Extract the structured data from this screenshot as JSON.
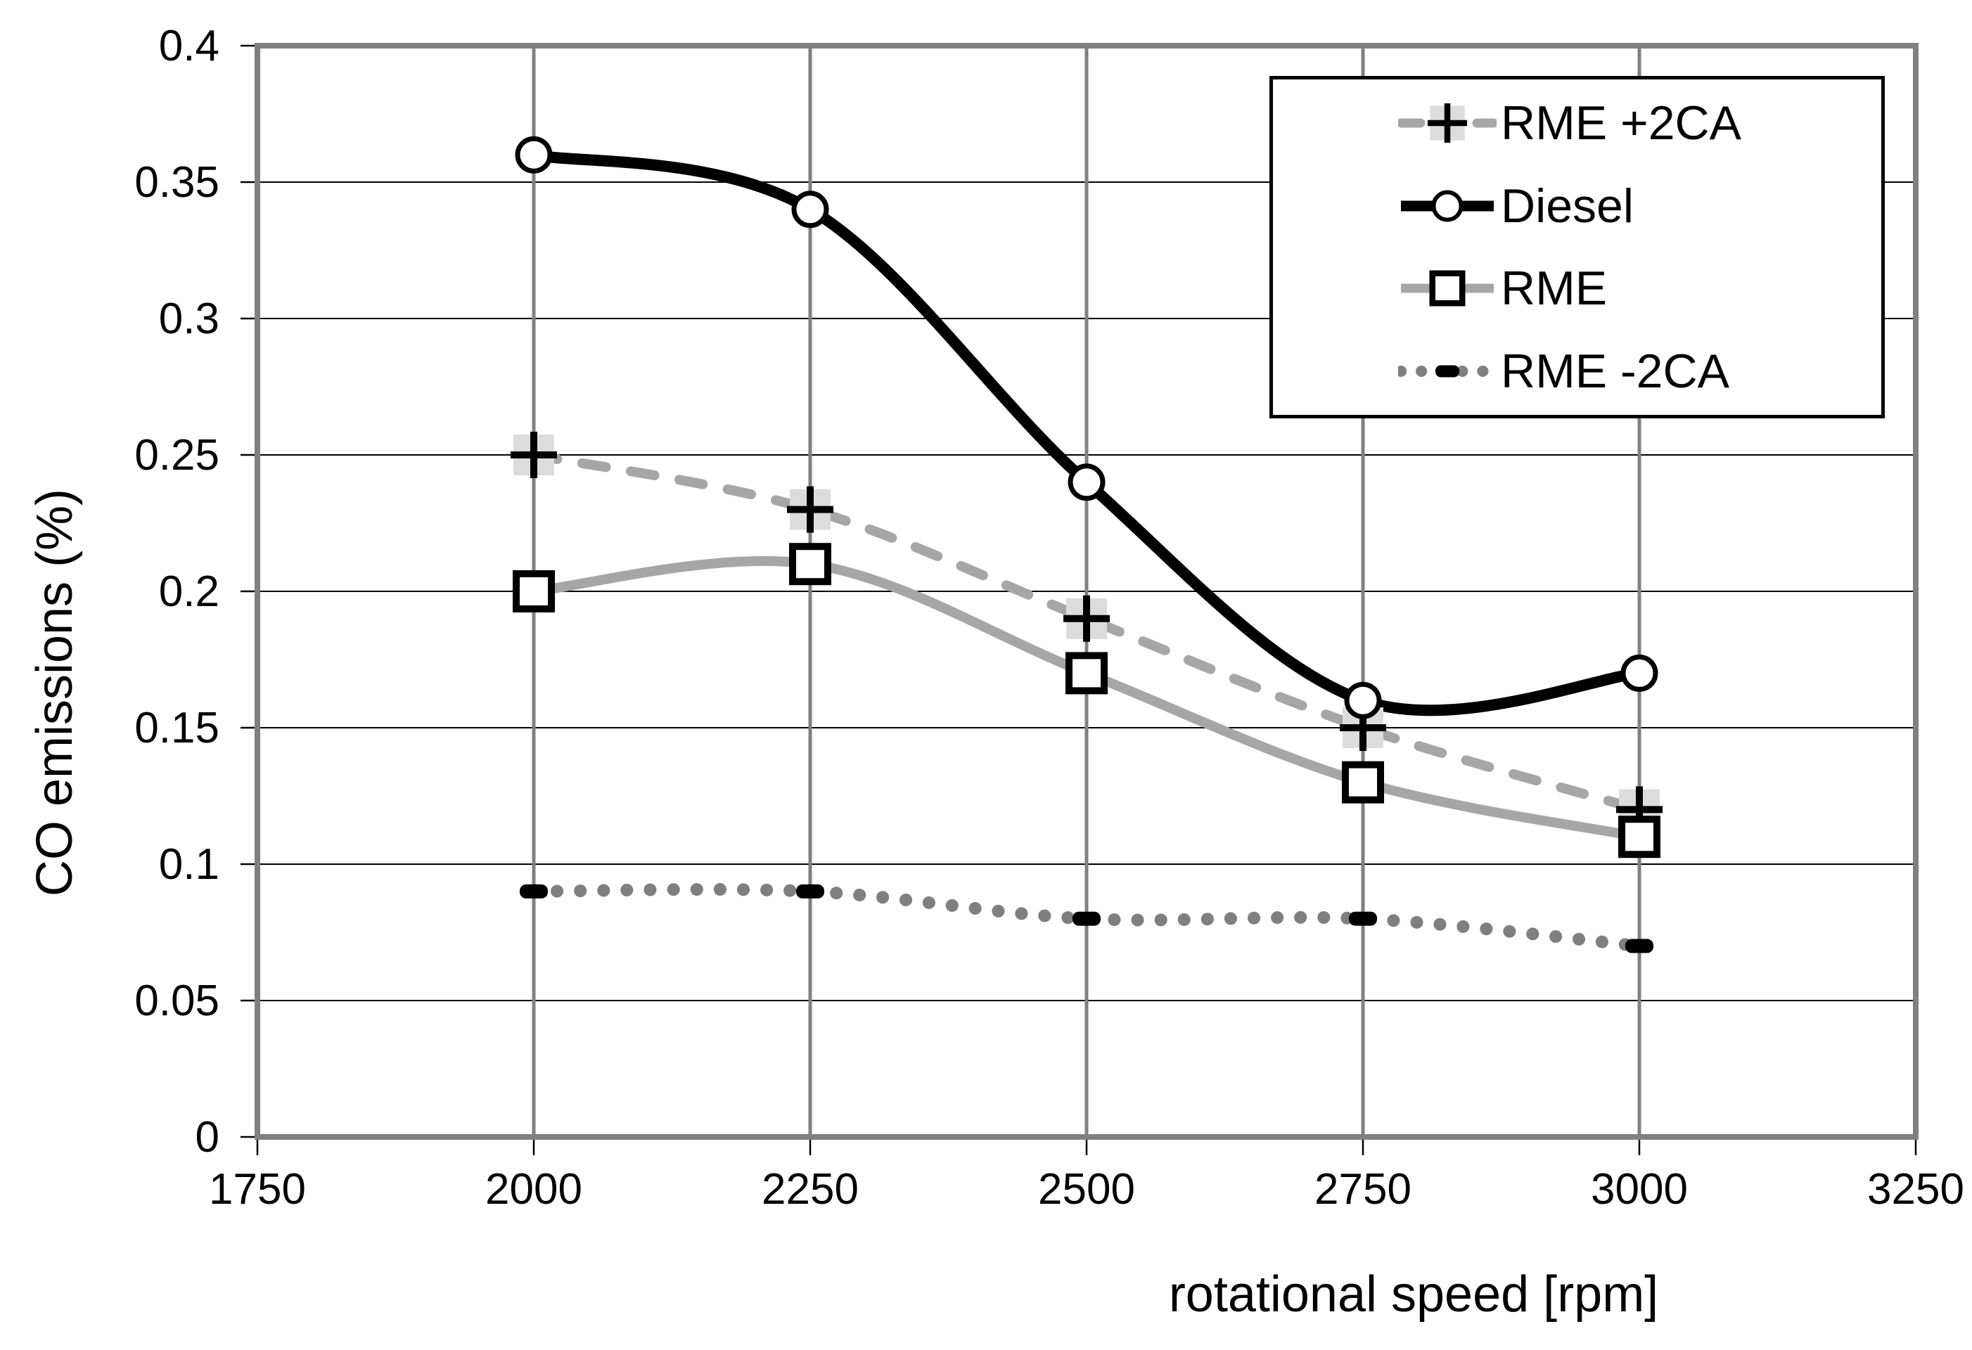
{
  "chart_data": {
    "type": "line",
    "title": "",
    "xlabel": "rotational speed [rpm]",
    "ylabel": "CO emissions (%)",
    "xlim": [
      1750,
      3250
    ],
    "ylim": [
      0,
      0.4
    ],
    "x_ticks": [
      1750,
      2000,
      2250,
      2500,
      2750,
      3000,
      3250
    ],
    "x_tick_labels": [
      "1750",
      "2000",
      "2250",
      "2500",
      "2750",
      "3000",
      "3250"
    ],
    "y_ticks": [
      0,
      0.05,
      0.1,
      0.15,
      0.2,
      0.25,
      0.3,
      0.35,
      0.4
    ],
    "y_tick_labels": [
      "0",
      "0.05",
      "0.1",
      "0.15",
      "0.2",
      "0.25",
      "0.3",
      "0.35",
      "0.4"
    ],
    "grid": true,
    "legend_position": "top-right",
    "x": [
      2000,
      2250,
      2500,
      2750,
      3000
    ],
    "series": [
      {
        "name": "RME +2CA",
        "values": [
          0.25,
          0.23,
          0.19,
          0.15,
          0.12
        ],
        "line_style": "dashed",
        "line_color": "#a6a6a6",
        "marker": "plus",
        "marker_color": "#000000",
        "marker_bg": "#dcdcdc"
      },
      {
        "name": "Diesel",
        "values": [
          0.36,
          0.34,
          0.24,
          0.16,
          0.17
        ],
        "line_style": "solid",
        "line_color": "#000000",
        "marker": "circle",
        "marker_color": "#000000",
        "marker_bg": "#ffffff"
      },
      {
        "name": "RME",
        "values": [
          0.2,
          0.21,
          0.17,
          0.13,
          0.11
        ],
        "line_style": "solid",
        "line_color": "#a6a6a6",
        "marker": "square",
        "marker_color": "#000000",
        "marker_bg": "#ffffff"
      },
      {
        "name": "RME -2CA",
        "values": [
          0.09,
          0.09,
          0.08,
          0.08,
          0.07
        ],
        "line_style": "dotted",
        "line_color": "#7f7f7f",
        "marker": "dash",
        "marker_color": "#000000",
        "marker_bg": "#000000"
      }
    ]
  },
  "axes": {
    "x_label": "rotational speed [rpm]",
    "y_label": "CO emissions (%)"
  },
  "legend": {
    "items": [
      {
        "label": "RME +2CA"
      },
      {
        "label": "Diesel"
      },
      {
        "label": "RME"
      },
      {
        "label": "RME -2CA"
      }
    ]
  },
  "colors": {
    "background": "#ffffff",
    "frame": "#808080",
    "vertical_gridline": "#808080",
    "horizontal_gridline": "#000000",
    "tick": "#000000",
    "text": "#000000",
    "diesel_line": "#000000",
    "rme_line": "#a6a6a6",
    "rme_plus2ca_line": "#a6a6a6",
    "rme_minus2ca_dots": "#7f7f7f",
    "plus_marker_background": "#dcdcdc"
  }
}
